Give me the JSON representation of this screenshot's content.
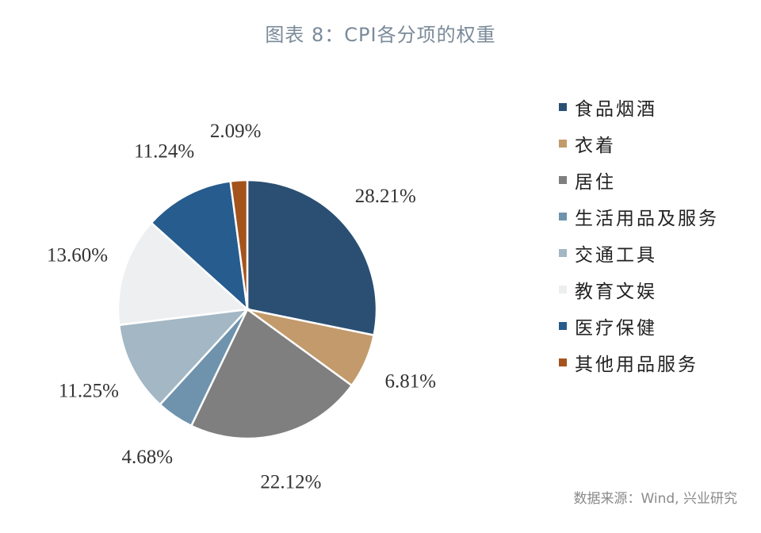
{
  "chart_data": {
    "type": "pie",
    "title": "图表 8：CPI各分项的权重",
    "categories": [
      "食品烟酒",
      "衣着",
      "居住",
      "生活用品及服务",
      "交通工具",
      "教育文娱",
      "医疗保健",
      "其他用品服务"
    ],
    "values": [
      28.21,
      6.81,
      22.12,
      4.68,
      11.25,
      13.6,
      11.24,
      2.09
    ],
    "data_labels": [
      "28.21%",
      "6.81%",
      "22.12%",
      "4.68%",
      "11.25%",
      "13.60%",
      "11.24%",
      "2.09%"
    ],
    "colors": [
      "#2a4f73",
      "#c29a6b",
      "#7f7f7f",
      "#6f93ad",
      "#a3b7c4",
      "#eeeff1",
      "#275c8e",
      "#a4531c"
    ],
    "start_angle": "12 o'clock",
    "direction": "clockwise",
    "legend_position": "right"
  },
  "source": "数据来源：Wind, 兴业研究"
}
